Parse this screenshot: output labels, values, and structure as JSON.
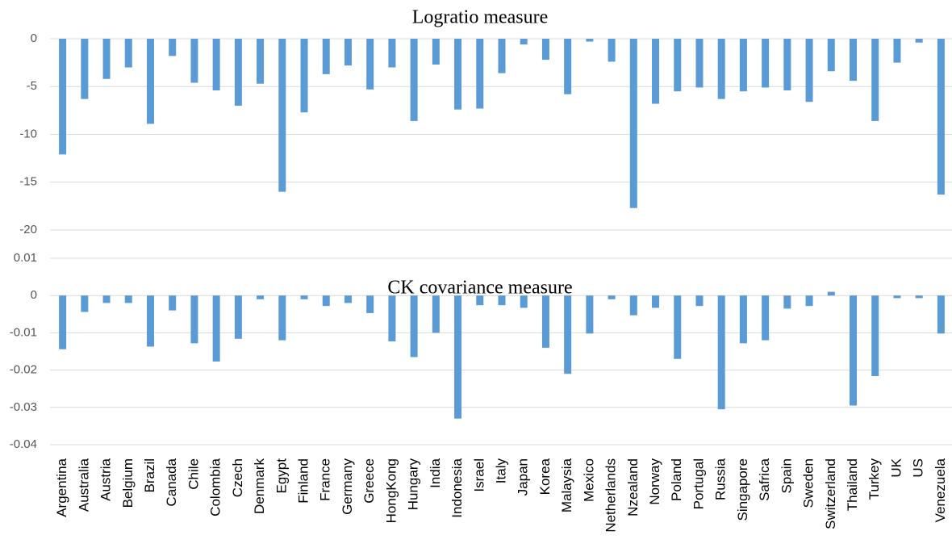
{
  "chart_data": [
    {
      "type": "bar",
      "title": "Logratio measure",
      "color": "#5b9bd5",
      "grid": true,
      "ylim": [
        -20,
        0
      ],
      "yticks": [
        0,
        -5,
        -10,
        -15,
        -20
      ],
      "values": [
        -12.1,
        -6.3,
        -4.2,
        -3,
        -8.9,
        -1.8,
        -4.6,
        -5.4,
        -7,
        -4.7,
        -16,
        -7.7,
        -3.7,
        -2.8,
        -5.3,
        -3,
        -8.6,
        -2.7,
        -7.4,
        -7.3,
        -3.6,
        -0.6,
        -2.2,
        -5.8,
        -0.3,
        -2.4,
        -17.7,
        -6.8,
        -5.5,
        -5.1,
        -6.3,
        -5.5,
        -5.1,
        -5.4,
        -6.6,
        -3.4,
        -4.4,
        -8.6,
        -2.5,
        -0.4,
        -16.3
      ]
    },
    {
      "type": "bar",
      "title": "CK covariance measure",
      "color": "#5b9bd5",
      "grid": true,
      "ylim": [
        -0.04,
        0.01
      ],
      "yticks": [
        0.01,
        0,
        -0.01,
        -0.02,
        -0.03,
        -0.04
      ],
      "categories": [
        "Argentina",
        "Australia",
        "Austria",
        "Belgium",
        "Brazil",
        "Canada",
        "Chile",
        "Colombia",
        "Czech",
        "Denmark",
        "Egypt",
        "Finland",
        "France",
        "Germany",
        "Greece",
        "HongKong",
        "Hungary",
        "India",
        "Indonesia",
        "Israel",
        "Italy",
        "Japan",
        "Korea",
        "Malaysia",
        "Mexico",
        "Netherlands",
        "Nzealand",
        "Norway",
        "Poland",
        "Portugal",
        "Russia",
        "Singapore",
        "Safrica",
        "Spain",
        "Sweden",
        "Switzerland",
        "Thailand",
        "Turkey",
        "UK",
        "US",
        "Venezuela"
      ],
      "values": [
        -0.0144,
        -0.0044,
        -0.002,
        -0.002,
        -0.0137,
        -0.004,
        -0.0128,
        -0.0177,
        -0.0116,
        -0.001,
        -0.012,
        -0.001,
        -0.0028,
        -0.002,
        -0.0047,
        -0.0123,
        -0.0165,
        -0.01,
        -0.033,
        -0.0026,
        -0.0026,
        -0.0033,
        -0.014,
        -0.021,
        -0.0102,
        -0.001,
        -0.0053,
        -0.0033,
        -0.017,
        -0.0028,
        -0.0305,
        -0.0128,
        -0.012,
        -0.0035,
        -0.0028,
        0.001,
        -0.0295,
        -0.0216,
        -0.0007,
        -0.0007,
        -0.0102
      ]
    }
  ]
}
